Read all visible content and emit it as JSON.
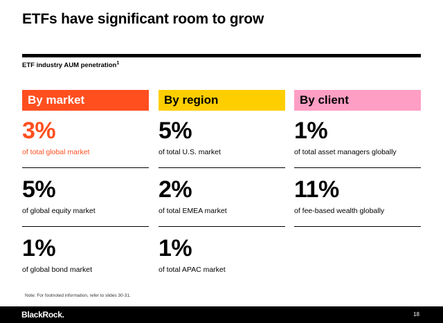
{
  "title": "ETFs have significant room to grow",
  "subtitle": "ETF industry AUM penetration",
  "subtitle_footnote_ref": "1",
  "columns": [
    {
      "header": "By market",
      "header_bg": "#ff4f1f",
      "header_color": "#ffffff",
      "stats": [
        {
          "value": "3%",
          "label": "of total global market",
          "color": "#ff4f1f"
        },
        {
          "value": "5%",
          "label": "of global equity market",
          "color": "#000000"
        },
        {
          "value": "1%",
          "label": "of global bond market",
          "color": "#000000"
        }
      ]
    },
    {
      "header": "By region",
      "header_bg": "#ffce00",
      "header_color": "#000000",
      "stats": [
        {
          "value": "5%",
          "label": "of total U.S. market",
          "color": "#000000"
        },
        {
          "value": "2%",
          "label": "of total EMEA market",
          "color": "#000000"
        },
        {
          "value": "1%",
          "label": "of total APAC market",
          "color": "#000000"
        }
      ]
    },
    {
      "header": "By client",
      "header_bg": "#ff9ec4",
      "header_color": "#000000",
      "stats": [
        {
          "value": "1%",
          "label": "of total asset managers globally",
          "color": "#000000"
        },
        {
          "value": "11%",
          "label": "of fee-based wealth globally",
          "color": "#000000"
        }
      ]
    }
  ],
  "footnote": "Note: For footnoted information, refer to slides 30-31.",
  "footer": {
    "logo": "BlackRock.",
    "page_number": "18"
  }
}
